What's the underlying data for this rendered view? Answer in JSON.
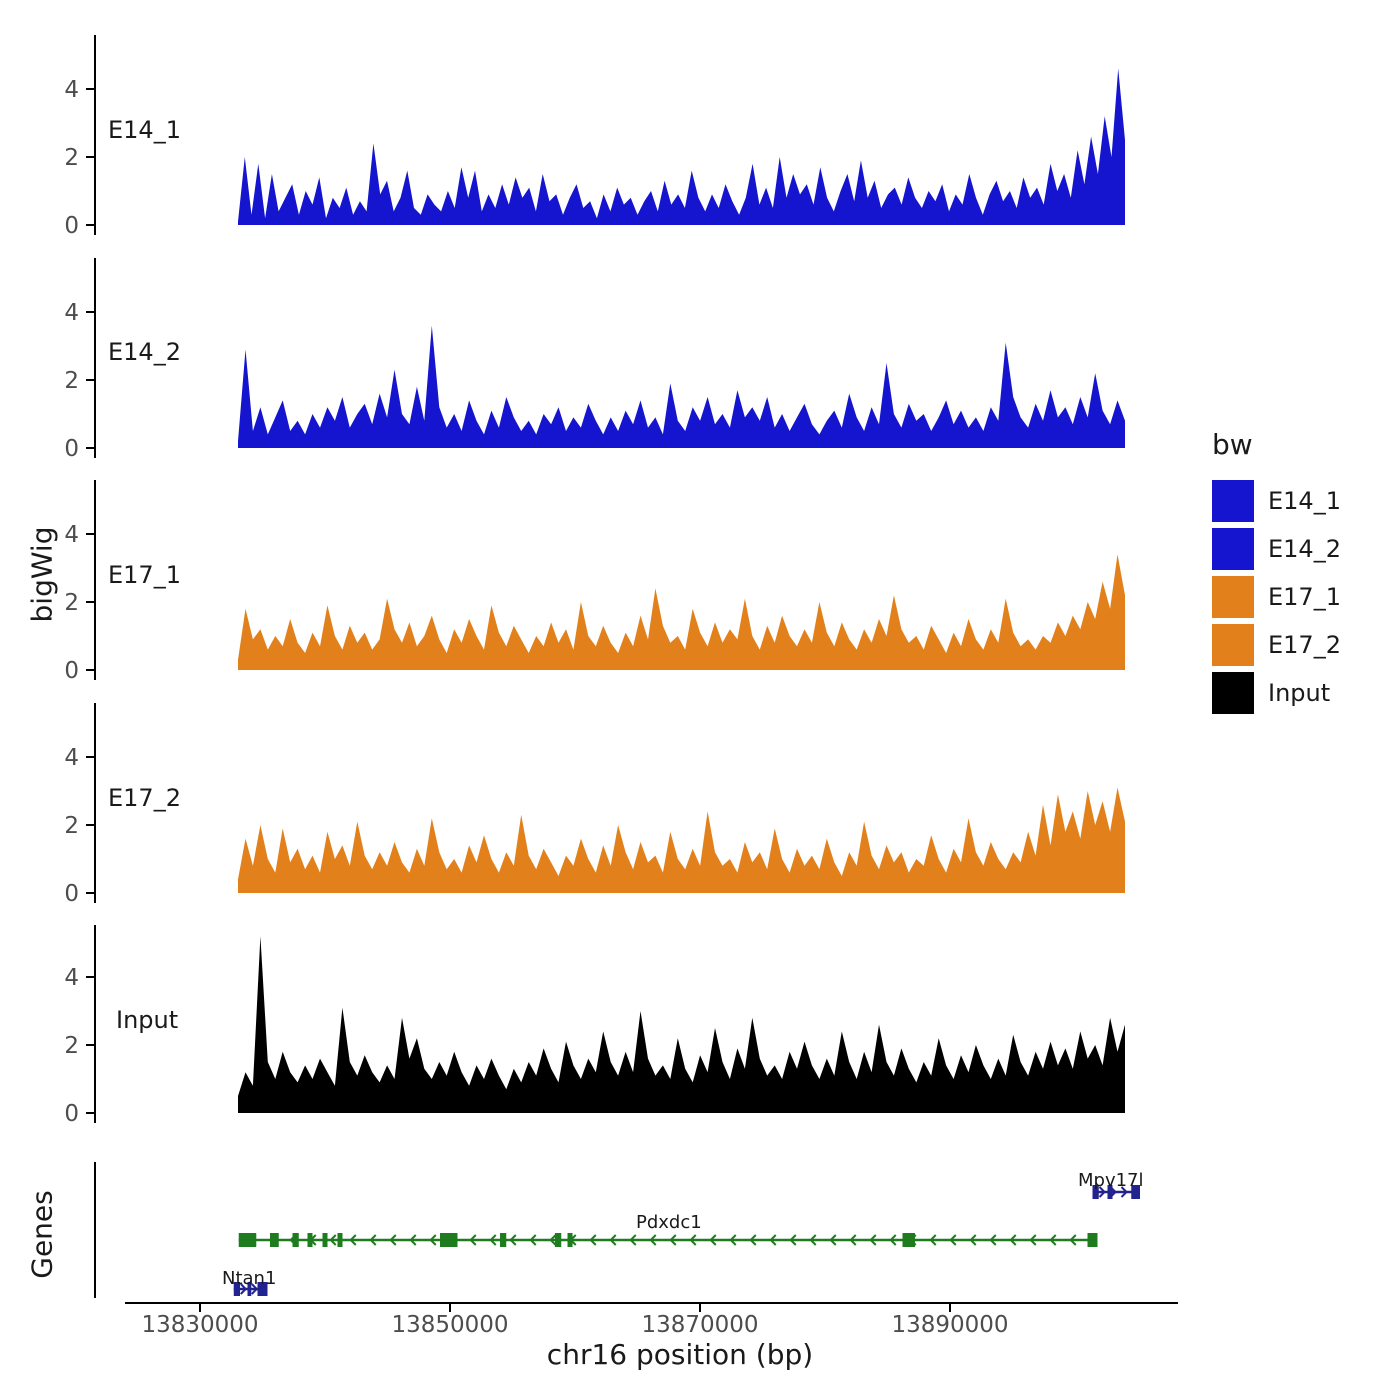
{
  "chart_data": {
    "type": "area",
    "description": "Genome browser style coverage tracks (bigWig) with gene models",
    "xlabel": "chr16 position (bp)",
    "ylabel": "bigWig",
    "genes_panel_label": "Genes",
    "legend_title": "bw",
    "ylim": [
      0,
      5.5
    ],
    "y_ticks": [
      0,
      2,
      4
    ],
    "x_ticks": [
      {
        "bp": 13830000,
        "label": "13830000"
      },
      {
        "bp": 13850000,
        "label": "13850000"
      },
      {
        "bp": 13870000,
        "label": "13870000"
      },
      {
        "bp": 13890000,
        "label": "13890000"
      }
    ],
    "signal_bp_start": 13833000,
    "signal_bp_end": 13904000,
    "tracks": [
      {
        "id": "E14_1",
        "label": "E14_1",
        "color": "#1515d0",
        "values": [
          0.1,
          2.0,
          0.3,
          1.8,
          0.2,
          1.5,
          0.4,
          0.8,
          1.2,
          0.3,
          1.0,
          0.6,
          1.4,
          0.2,
          0.8,
          0.5,
          1.1,
          0.3,
          0.7,
          0.4,
          2.4,
          0.9,
          1.3,
          0.4,
          0.8,
          1.6,
          0.5,
          0.3,
          0.9,
          0.6,
          0.4,
          1.0,
          0.5,
          1.7,
          0.8,
          1.6,
          0.4,
          0.9,
          0.5,
          1.2,
          0.6,
          1.4,
          0.8,
          1.1,
          0.4,
          1.5,
          0.7,
          0.9,
          0.3,
          0.8,
          1.2,
          0.5,
          0.7,
          0.2,
          0.9,
          0.4,
          1.1,
          0.6,
          0.8,
          0.3,
          0.7,
          1.0,
          0.4,
          1.3,
          0.6,
          0.9,
          0.5,
          1.6,
          0.8,
          0.4,
          0.9,
          0.5,
          1.2,
          0.7,
          0.3,
          0.8,
          1.8,
          0.6,
          1.1,
          0.5,
          2.0,
          0.8,
          1.5,
          0.9,
          1.2,
          0.6,
          1.7,
          0.8,
          0.4,
          1.0,
          1.5,
          0.7,
          1.9,
          0.8,
          1.3,
          0.5,
          0.9,
          1.1,
          0.6,
          1.4,
          0.8,
          0.5,
          1.0,
          0.7,
          1.2,
          0.4,
          0.9,
          0.6,
          1.5,
          0.8,
          0.3,
          0.9,
          1.3,
          0.7,
          1.0,
          0.5,
          1.4,
          0.8,
          1.1,
          0.6,
          1.8,
          1.0,
          1.5,
          0.8,
          2.2,
          1.2,
          2.6,
          1.5,
          3.2,
          2.0,
          4.6,
          2.5
        ]
      },
      {
        "id": "E14_2",
        "label": "E14_2",
        "color": "#1515d0",
        "values": [
          0.2,
          2.9,
          0.5,
          1.2,
          0.4,
          0.9,
          1.4,
          0.5,
          0.8,
          0.4,
          1.0,
          0.6,
          1.2,
          0.8,
          1.5,
          0.6,
          1.0,
          1.3,
          0.7,
          1.6,
          0.9,
          2.3,
          1.0,
          0.7,
          1.8,
          0.8,
          3.6,
          1.2,
          0.6,
          1.0,
          0.5,
          1.4,
          0.8,
          0.4,
          1.1,
          0.6,
          1.5,
          0.9,
          0.5,
          0.8,
          0.4,
          1.0,
          0.7,
          1.2,
          0.5,
          0.9,
          0.6,
          1.3,
          0.8,
          0.4,
          0.9,
          0.5,
          1.1,
          0.7,
          1.4,
          0.6,
          0.9,
          0.4,
          1.9,
          0.8,
          0.5,
          1.2,
          0.8,
          1.5,
          0.7,
          1.0,
          0.6,
          1.7,
          0.9,
          1.2,
          0.8,
          1.5,
          0.6,
          1.0,
          0.5,
          0.9,
          1.3,
          0.7,
          0.4,
          0.8,
          1.1,
          0.6,
          1.6,
          0.9,
          0.5,
          1.2,
          0.7,
          2.5,
          1.0,
          0.6,
          1.3,
          0.8,
          1.0,
          0.5,
          0.9,
          1.4,
          0.7,
          1.1,
          0.6,
          0.9,
          0.5,
          1.2,
          0.8,
          3.1,
          1.5,
          0.9,
          0.6,
          1.3,
          0.8,
          1.7,
          0.9,
          1.2,
          0.7,
          1.5,
          0.9,
          2.2,
          1.1,
          0.7,
          1.4,
          0.8
        ]
      },
      {
        "id": "E17_1",
        "label": "E17_1",
        "color": "#e2811b",
        "values": [
          0.3,
          1.8,
          0.9,
          1.2,
          0.6,
          1.0,
          0.7,
          1.5,
          0.8,
          0.5,
          1.1,
          0.7,
          1.9,
          1.0,
          0.6,
          1.3,
          0.8,
          1.1,
          0.6,
          0.9,
          2.1,
          1.2,
          0.8,
          1.4,
          0.7,
          1.0,
          1.6,
          0.9,
          0.5,
          1.2,
          0.8,
          1.5,
          1.0,
          0.6,
          1.9,
          1.1,
          0.7,
          1.3,
          0.9,
          0.5,
          1.0,
          0.7,
          1.4,
          0.8,
          1.2,
          0.6,
          2.0,
          1.0,
          0.7,
          1.3,
          0.8,
          0.5,
          1.1,
          0.7,
          1.6,
          0.9,
          2.4,
          1.3,
          0.8,
          1.0,
          0.6,
          1.8,
          1.1,
          0.7,
          1.4,
          0.8,
          1.2,
          0.9,
          2.1,
          1.0,
          0.6,
          1.3,
          0.8,
          1.6,
          1.0,
          0.7,
          1.2,
          0.8,
          2.0,
          1.1,
          0.7,
          1.4,
          0.9,
          0.6,
          1.2,
          0.8,
          1.5,
          1.0,
          2.2,
          1.2,
          0.8,
          1.0,
          0.6,
          1.3,
          0.9,
          0.5,
          1.1,
          0.7,
          1.5,
          0.9,
          0.6,
          1.2,
          0.8,
          2.1,
          1.1,
          0.7,
          0.9,
          0.6,
          1.0,
          0.8,
          1.4,
          1.0,
          1.6,
          1.2,
          2.0,
          1.5,
          2.6,
          1.8,
          3.4,
          2.2
        ]
      },
      {
        "id": "E17_2",
        "label": "E17_2",
        "color": "#e2811b",
        "values": [
          0.4,
          1.6,
          0.8,
          2.0,
          1.0,
          0.6,
          1.9,
          0.9,
          1.3,
          0.7,
          1.1,
          0.6,
          1.8,
          1.0,
          1.4,
          0.8,
          2.1,
          1.1,
          0.7,
          1.2,
          0.8,
          1.5,
          0.9,
          0.6,
          1.3,
          0.8,
          2.2,
          1.2,
          0.7,
          1.0,
          0.6,
          1.4,
          0.9,
          1.7,
          1.0,
          0.6,
          1.2,
          0.8,
          2.3,
          1.1,
          0.7,
          1.3,
          0.9,
          0.5,
          1.1,
          0.8,
          1.6,
          1.0,
          0.6,
          1.4,
          0.8,
          2.0,
          1.2,
          0.7,
          1.5,
          0.9,
          1.1,
          0.6,
          1.8,
          1.0,
          0.7,
          1.3,
          0.8,
          2.4,
          1.2,
          0.8,
          1.0,
          0.6,
          1.5,
          0.9,
          1.2,
          0.7,
          1.9,
          1.0,
          0.6,
          1.3,
          0.8,
          1.1,
          0.7,
          1.6,
          0.9,
          0.5,
          1.2,
          0.8,
          2.1,
          1.1,
          0.7,
          1.4,
          0.9,
          1.2,
          0.6,
          1.0,
          0.8,
          1.7,
          1.0,
          0.6,
          1.3,
          0.9,
          2.2,
          1.2,
          0.8,
          1.5,
          1.0,
          0.7,
          1.2,
          0.9,
          1.8,
          1.1,
          2.6,
          1.4,
          2.9,
          1.8,
          2.4,
          1.6,
          3.0,
          2.0,
          2.7,
          1.8,
          3.1,
          2.1
        ]
      },
      {
        "id": "Input",
        "label": "Input",
        "color": "#000000",
        "values": [
          0.5,
          1.2,
          0.8,
          5.2,
          1.5,
          1.0,
          1.8,
          1.2,
          0.9,
          1.4,
          1.0,
          1.6,
          1.2,
          0.8,
          3.1,
          1.5,
          1.1,
          1.7,
          1.2,
          0.9,
          1.4,
          1.0,
          2.8,
          1.6,
          2.2,
          1.3,
          1.0,
          1.5,
          1.1,
          1.8,
          1.2,
          0.8,
          1.4,
          1.0,
          1.6,
          1.1,
          0.7,
          1.3,
          0.9,
          1.5,
          1.1,
          1.9,
          1.3,
          0.9,
          2.1,
          1.4,
          1.0,
          1.6,
          1.2,
          2.4,
          1.5,
          1.1,
          1.8,
          1.2,
          3.0,
          1.6,
          1.1,
          1.4,
          1.0,
          2.2,
          1.3,
          0.9,
          1.7,
          1.2,
          2.5,
          1.5,
          1.0,
          1.9,
          1.3,
          2.8,
          1.6,
          1.1,
          1.4,
          1.0,
          1.8,
          1.3,
          2.1,
          1.4,
          1.0,
          1.6,
          1.1,
          2.4,
          1.5,
          1.0,
          1.8,
          1.2,
          2.6,
          1.5,
          1.1,
          1.9,
          1.3,
          0.9,
          1.5,
          1.1,
          2.2,
          1.4,
          1.0,
          1.7,
          1.2,
          2.0,
          1.4,
          1.0,
          1.6,
          1.1,
          2.3,
          1.5,
          1.1,
          1.8,
          1.3,
          2.1,
          1.4,
          1.9,
          1.3,
          2.4,
          1.6,
          2.0,
          1.4,
          2.8,
          1.8,
          2.6
        ]
      }
    ],
    "genes": [
      {
        "name": "Mpv17l",
        "strand": "+",
        "color": "#23238f",
        "row": "top",
        "start": 13901400,
        "end": 13905200,
        "exons": [
          [
            13901400,
            13901900
          ],
          [
            13902600,
            13903000
          ],
          [
            13904500,
            13905200
          ]
        ]
      },
      {
        "name": "Pdxdc1",
        "strand": "-",
        "color": "#1e7b1e",
        "row": "middle",
        "start": 13833100,
        "end": 13901800,
        "exons": [
          [
            13833100,
            13834500
          ],
          [
            13835600,
            13836300
          ],
          [
            13837400,
            13837900
          ],
          [
            13838600,
            13839000
          ],
          [
            13839800,
            13840200
          ],
          [
            13841000,
            13841400
          ],
          [
            13849200,
            13850600
          ],
          [
            13854000,
            13854500
          ],
          [
            13858400,
            13858900
          ],
          [
            13859400,
            13859800
          ],
          [
            13886200,
            13887200
          ],
          [
            13901000,
            13901800
          ]
        ]
      },
      {
        "name": "Ntan1",
        "strand": "+",
        "color": "#23238f",
        "row": "bottom",
        "start": 13832700,
        "end": 13835400,
        "exons": [
          [
            13832700,
            13833200
          ],
          [
            13833800,
            13834100
          ],
          [
            13834600,
            13835400
          ]
        ]
      }
    ]
  }
}
